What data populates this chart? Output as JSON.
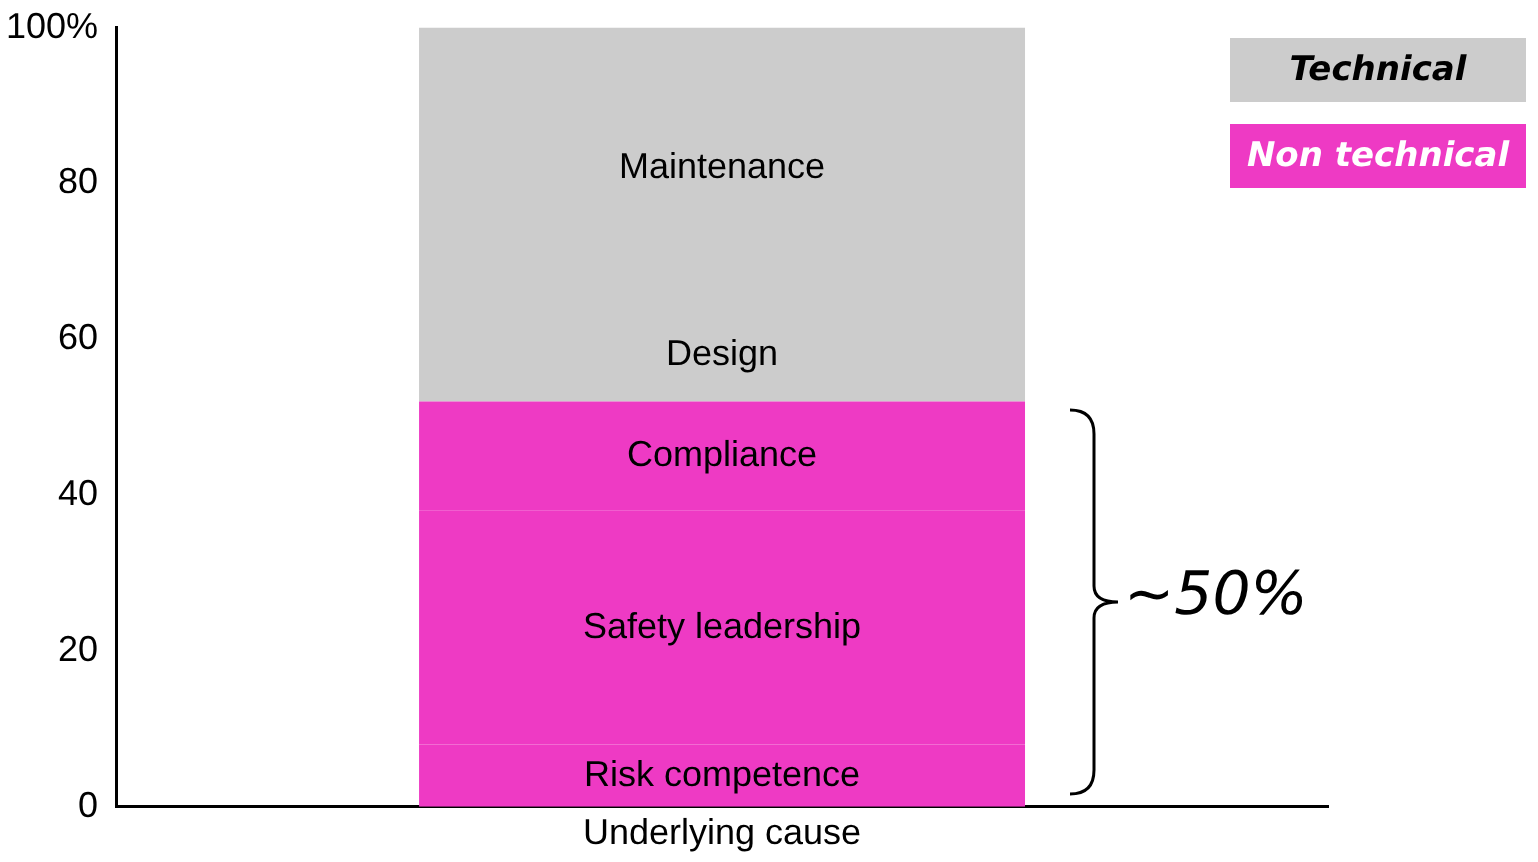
{
  "chart_data": {
    "type": "bar",
    "stacked": true,
    "categories": [
      "Underlying cause"
    ],
    "series": [
      {
        "name": "Risk competence",
        "color": "#ee3ac4",
        "values": [
          8
        ]
      },
      {
        "name": "Safety leadership",
        "color": "#ee3ac4",
        "values": [
          30
        ]
      },
      {
        "name": "Compliance",
        "color": "#ee3ac4",
        "values": [
          14
        ]
      },
      {
        "name": "Design",
        "color": "#cccccc",
        "values": [
          12
        ]
      },
      {
        "name": "Maintenance",
        "color": "#cccccc",
        "values": [
          36
        ]
      }
    ],
    "ylim": [
      0,
      100
    ],
    "yticks": [
      0,
      20,
      40,
      60,
      {
        "value": 80,
        "label": "80"
      },
      {
        "value": 100,
        "label": "100%"
      }
    ],
    "grid": false,
    "legend": false,
    "annotations": [
      "Technical",
      "Non technical",
      "~50%"
    ]
  }
}
